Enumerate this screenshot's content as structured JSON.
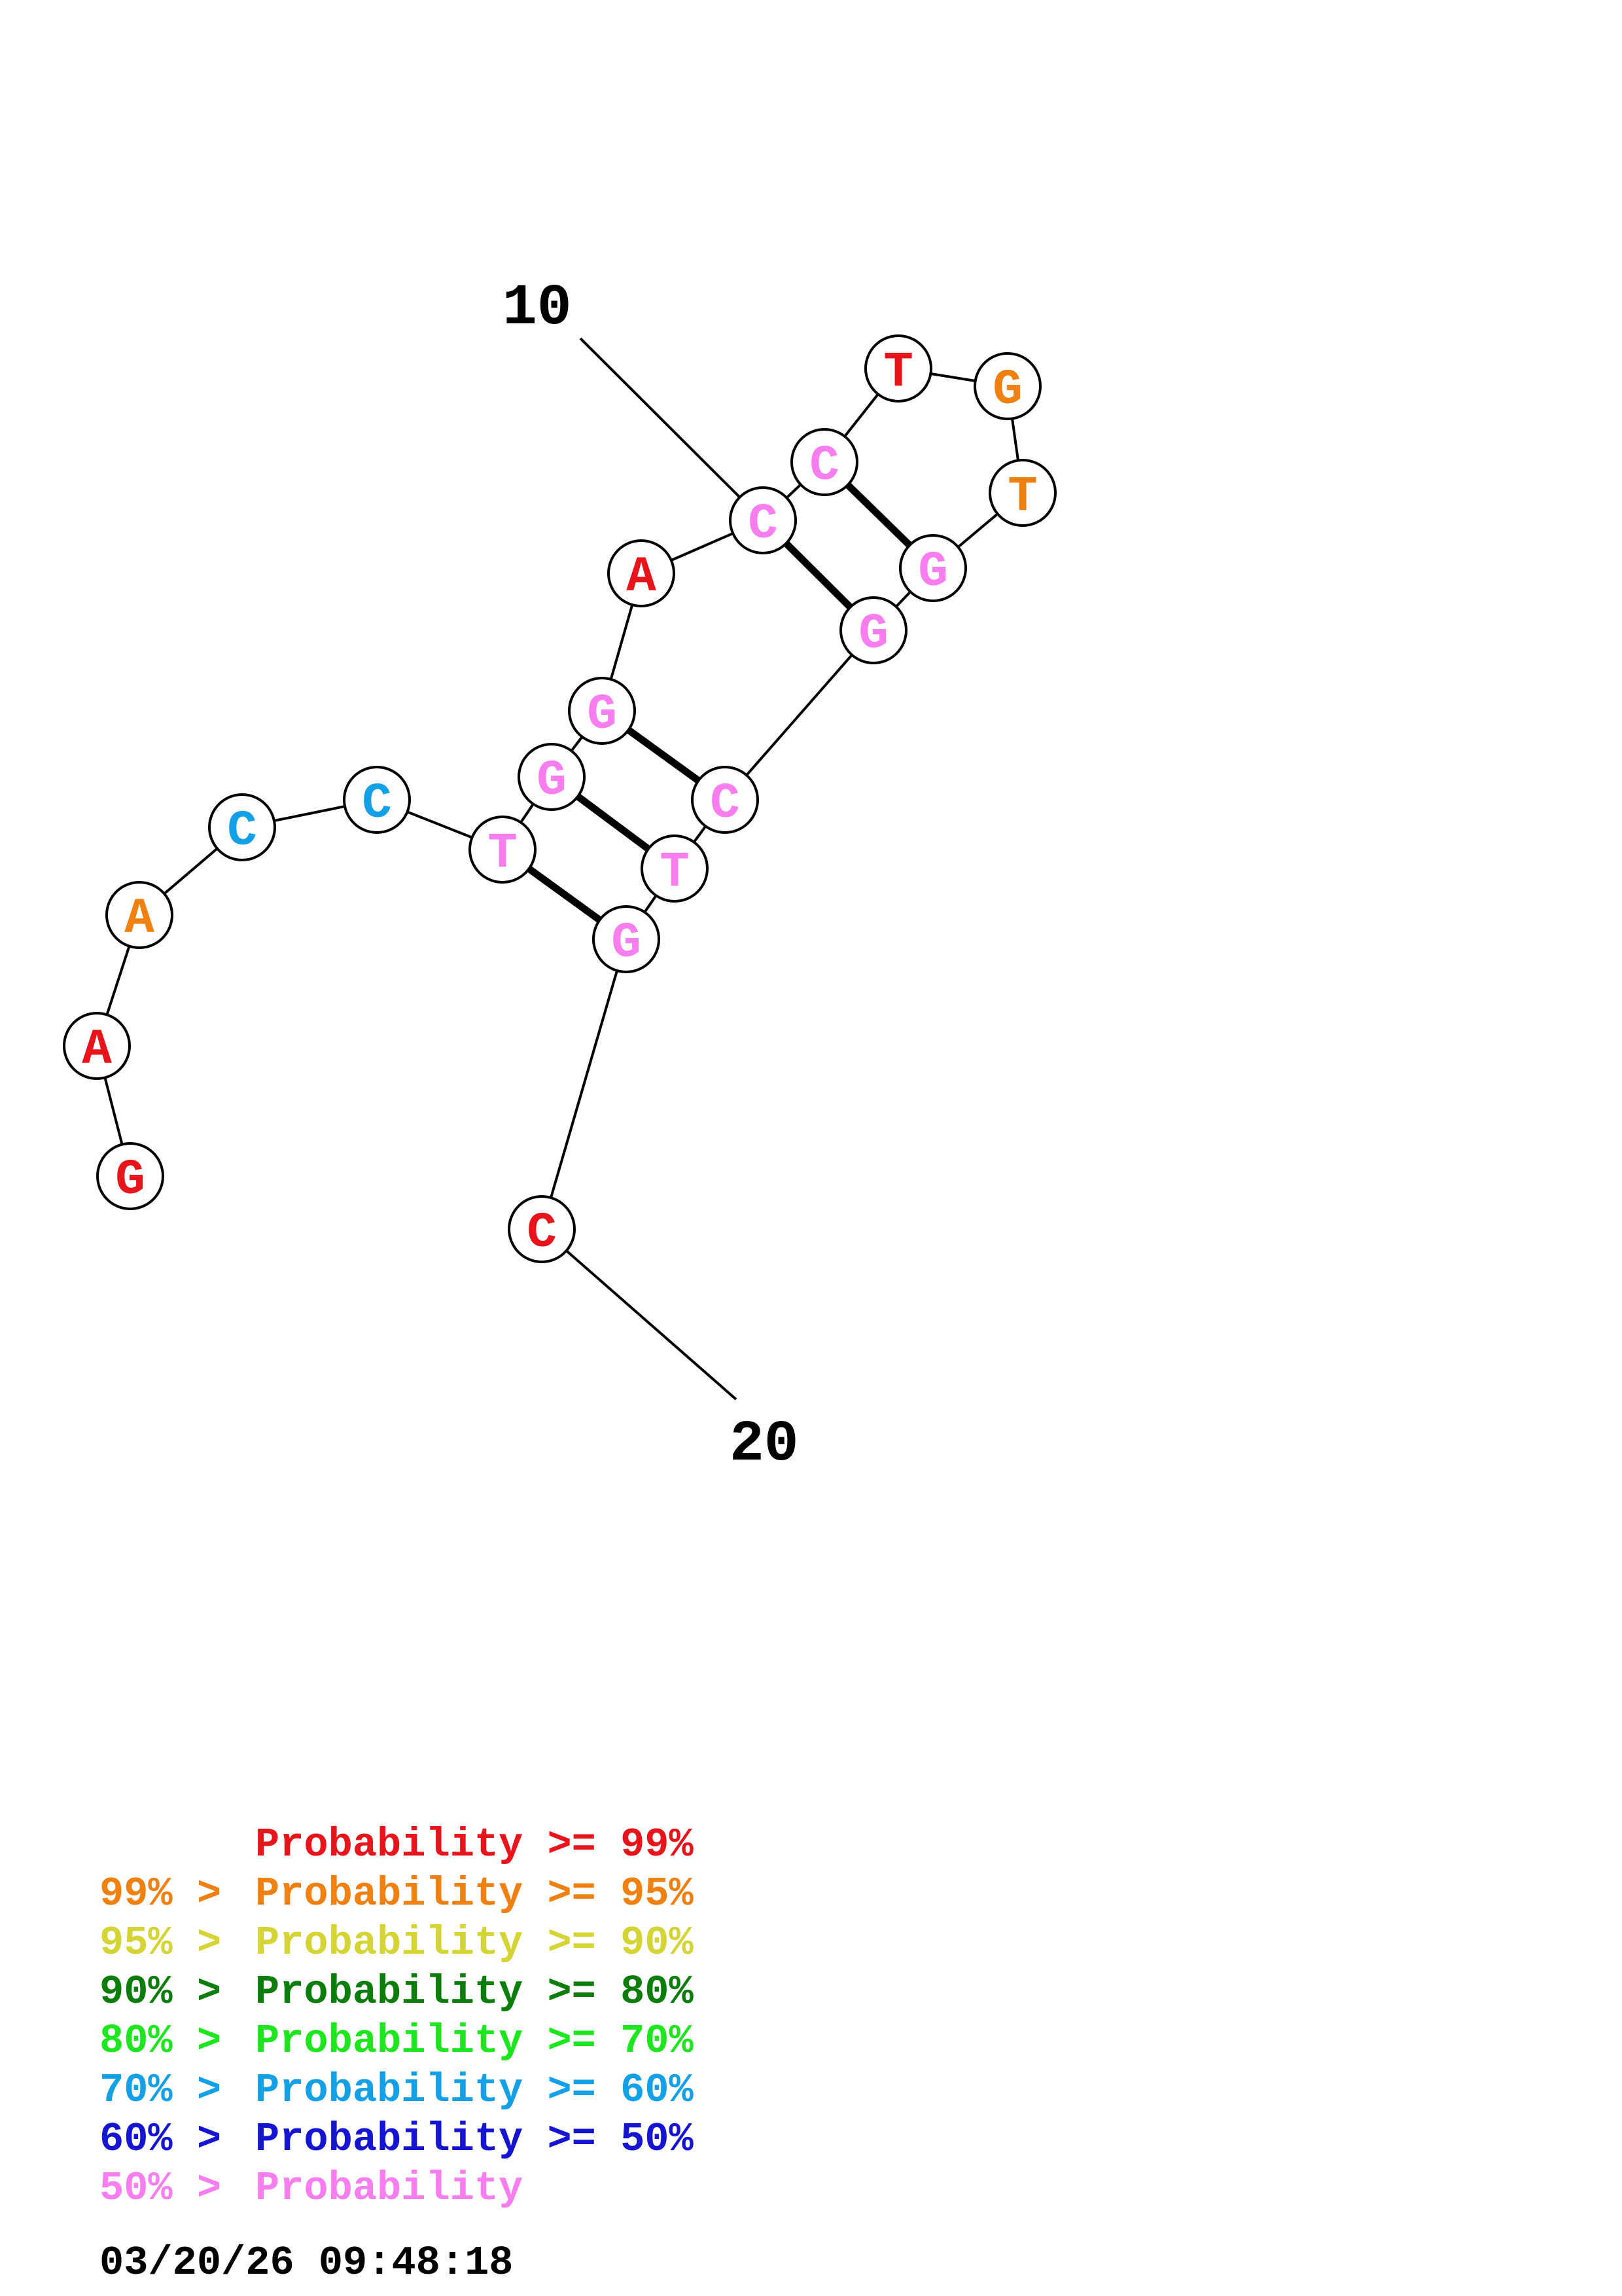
{
  "sequence": {
    "nucleotides": [
      {
        "base": "G",
        "color": "#e8141c"
      },
      {
        "base": "A",
        "color": "#e8141c"
      },
      {
        "base": "A",
        "color": "#f08010"
      },
      {
        "base": "C",
        "color": "#14a0e6"
      },
      {
        "base": "C",
        "color": "#14a0e6"
      },
      {
        "base": "T",
        "color": "#f87ef0"
      },
      {
        "base": "G",
        "color": "#f87ef0"
      },
      {
        "base": "G",
        "color": "#f87ef0"
      },
      {
        "base": "A",
        "color": "#e8141c"
      },
      {
        "base": "C",
        "color": "#f87ef0"
      },
      {
        "base": "C",
        "color": "#f87ef0"
      },
      {
        "base": "T",
        "color": "#e8141c"
      },
      {
        "base": "G",
        "color": "#f08010"
      },
      {
        "base": "T",
        "color": "#f08010"
      },
      {
        "base": "G",
        "color": "#f87ef0"
      },
      {
        "base": "G",
        "color": "#f87ef0"
      },
      {
        "base": "C",
        "color": "#f87ef0"
      },
      {
        "base": "T",
        "color": "#f87ef0"
      },
      {
        "base": "G",
        "color": "#f87ef0"
      },
      {
        "base": "C",
        "color": "#e8141c"
      }
    ],
    "pairs": [
      [
        6,
        19
      ],
      [
        7,
        18
      ],
      [
        8,
        17
      ],
      [
        10,
        16
      ],
      [
        11,
        15
      ]
    ],
    "number_labels": {
      "ten": "10",
      "twenty": "20"
    }
  },
  "legend": {
    "rows": [
      {
        "prefix": "",
        "label": "Probability >= 99%",
        "color": "#e8141c"
      },
      {
        "prefix": "99% > ",
        "label": "Probability >= 95%",
        "color": "#f08010"
      },
      {
        "prefix": "95% > ",
        "label": "Probability >= 90%",
        "color": "#d4d434"
      },
      {
        "prefix": "90% > ",
        "label": "Probability >= 80%",
        "color": "#0a7d0a"
      },
      {
        "prefix": "80% > ",
        "label": "Probability >= 70%",
        "color": "#1ee61e"
      },
      {
        "prefix": "70% > ",
        "label": "Probability >= 60%",
        "color": "#14a0e6"
      },
      {
        "prefix": "60% > ",
        "label": "Probability >= 50%",
        "color": "#1414d2"
      },
      {
        "prefix": "50% > ",
        "label": "Probability",
        "color": "#f87ef0"
      }
    ],
    "timestamp": "03/20/26 09:48:18"
  }
}
